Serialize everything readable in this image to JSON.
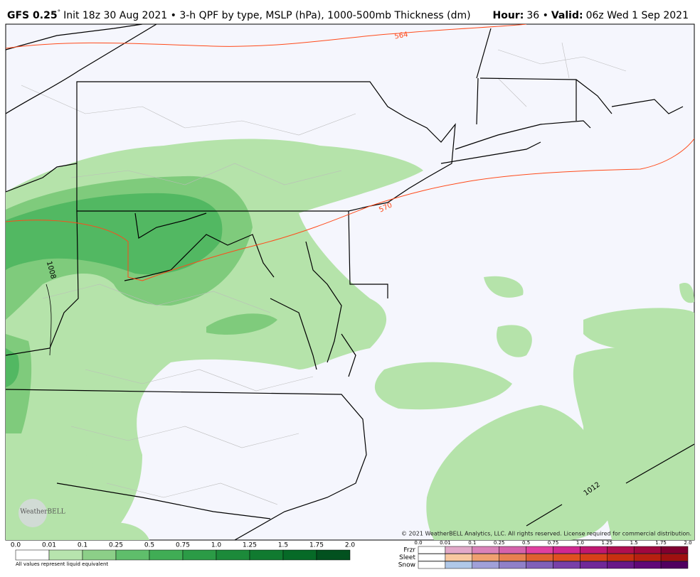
{
  "header": {
    "model": "GFS 0.25",
    "degree": "°",
    "description": "Init 18z 30 Aug 2021 • 3-h QPF by type, MSLP (hPa), 1000-500mb Thickness (dm)",
    "hour_label": "Hour:",
    "hour": "36 •",
    "valid_label": "Valid:",
    "valid": "06z Wed 1 Sep 2021"
  },
  "map": {
    "contour_labels": [
      "564",
      "570",
      "1008",
      "1012"
    ],
    "copyright": "© 2021 WeatherBELL Analytics, LLC. All rights reserved. License required for commercial distribution.",
    "logo": "WeatherBELL"
  },
  "legend": {
    "rain": {
      "labels": [
        "0.0",
        "0.01",
        "0.1",
        "0.25",
        "0.5",
        "0.75",
        "1.0",
        "1.25",
        "1.5",
        "1.75",
        "2.0"
      ],
      "colors": [
        "#ffffff",
        "#b7e4ae",
        "#8ccf88",
        "#5fbe6b",
        "#40ad55",
        "#2b9b46",
        "#1c8a3a",
        "#107a30",
        "#066a27",
        "#02511f"
      ],
      "note": "All values represent liquid equivalent"
    },
    "ptype": {
      "labels": [
        "0.0",
        "0.01",
        "0.1",
        "0.25",
        "0.5",
        "0.75",
        "1.0",
        "1.25",
        "1.5",
        "1.75",
        "2.0"
      ],
      "rows": [
        {
          "name": "Frzr",
          "colors": [
            "#ffffff",
            "#e2a9c9",
            "#da82b9",
            "#d562ab",
            "#e040a0",
            "#d02890",
            "#c01870",
            "#b01050",
            "#a00840",
            "#800030"
          ]
        },
        {
          "name": "Sleet",
          "colors": [
            "#ffffff",
            "#f8c8a0",
            "#f0a070",
            "#e88050",
            "#e06030",
            "#e05020",
            "#d84018",
            "#c83010",
            "#b82010",
            "#a01010"
          ]
        },
        {
          "name": "Snow",
          "colors": [
            "#ffffff",
            "#b0c8e8",
            "#a0a0d8",
            "#9080c8",
            "#8060b8",
            "#7840a8",
            "#702898",
            "#681888",
            "#600878",
            "#500060"
          ]
        }
      ]
    }
  }
}
